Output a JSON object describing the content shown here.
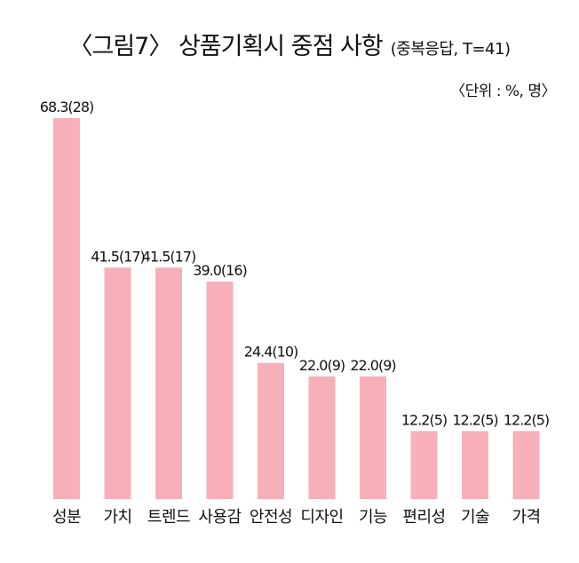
{
  "header": {
    "title": "〈그림7〉 상품기획시 중점 사항",
    "subtitle": "(중복응답, T=41)",
    "unit_note": "〈단위 : %, 명〉"
  },
  "colors": {
    "bar": "#f7b0b8",
    "text": "#111111"
  },
  "chart_data": {
    "type": "bar",
    "title": "〈그림7〉 상품기획시 중점 사항",
    "subtitle": "(중복응답, T=41)",
    "unit": "〈단위 : %, 명〉",
    "categories": [
      "성분",
      "가치",
      "트렌드",
      "사용감",
      "안전성",
      "디자인",
      "기능",
      "편리성",
      "기술",
      "가격"
    ],
    "values": [
      68.3,
      41.5,
      41.5,
      39.0,
      24.4,
      22.0,
      22.0,
      12.2,
      12.2,
      12.2
    ],
    "counts": [
      28,
      17,
      17,
      16,
      10,
      9,
      9,
      5,
      5,
      5
    ],
    "data_labels": [
      "68.3(28)",
      "41.5(17)",
      "41.5(17)",
      "39.0(16)",
      "24.4(10)",
      "22.0(9)",
      "22.0(9)",
      "12.2(5)",
      "12.2(5)",
      "12.2(5)"
    ],
    "ylim": [
      0,
      68.3
    ],
    "grid": false,
    "legend": "none"
  }
}
